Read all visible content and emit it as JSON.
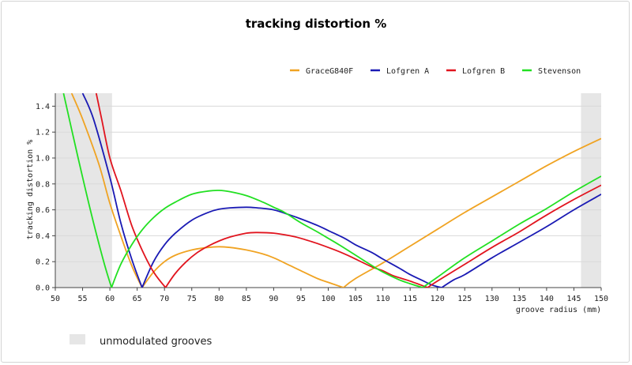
{
  "chart_data": {
    "type": "line",
    "title": "tracking distortion %",
    "xlabel": "groove radius (mm)",
    "ylabel": "tracking distortion %",
    "xlim": [
      50,
      150
    ],
    "ylim": [
      0,
      1.5
    ],
    "x_ticks": [
      50,
      55,
      60,
      65,
      70,
      75,
      80,
      85,
      90,
      95,
      100,
      105,
      110,
      115,
      120,
      125,
      130,
      135,
      140,
      145,
      150
    ],
    "y_ticks": [
      0.0,
      0.2,
      0.4,
      0.6,
      0.8,
      1.0,
      1.2,
      1.4
    ],
    "y_tick_labels": [
      "0.0",
      "0.2",
      "0.4",
      "0.6",
      "0.8",
      "1.0",
      "1.2",
      "1.4"
    ],
    "grid": "horizontal",
    "legend_position": "top-right",
    "shaded_regions": [
      {
        "x": [
          50,
          60.4
        ],
        "label": "unmodulated grooves"
      },
      {
        "x": [
          146.3,
          150
        ],
        "label": "unmodulated grooves"
      }
    ],
    "shaded_legend_label": "unmodulated grooves",
    "series": [
      {
        "name": "GraceG840F",
        "color": "#f0a322",
        "x": [
          53,
          55,
          58,
          60,
          62,
          64,
          65.9,
          68,
          70,
          72,
          75,
          78,
          80,
          82,
          85,
          88,
          90,
          93,
          95,
          98,
          100,
          102.8,
          105,
          110,
          115,
          120,
          125,
          130,
          135,
          140,
          145,
          150
        ],
        "y": [
          1.5,
          1.3,
          0.95,
          0.65,
          0.4,
          0.17,
          0.0,
          0.12,
          0.2,
          0.25,
          0.29,
          0.31,
          0.315,
          0.31,
          0.29,
          0.26,
          0.23,
          0.17,
          0.13,
          0.07,
          0.04,
          0.0,
          0.07,
          0.19,
          0.32,
          0.45,
          0.58,
          0.7,
          0.82,
          0.94,
          1.05,
          1.15
        ]
      },
      {
        "name": "Lofgren A",
        "color": "#1a1ab4",
        "x": [
          55,
          57,
          60,
          62,
          64,
          65.9,
          68,
          70,
          72,
          75,
          78,
          80,
          82,
          85,
          87,
          90,
          93,
          95,
          98,
          100,
          103,
          105,
          108,
          110,
          113,
          115,
          117,
          119,
          120.8,
          123,
          125,
          130,
          135,
          140,
          145,
          150
        ],
        "y": [
          1.5,
          1.3,
          0.85,
          0.5,
          0.22,
          0.0,
          0.2,
          0.33,
          0.42,
          0.52,
          0.58,
          0.605,
          0.615,
          0.62,
          0.615,
          0.6,
          0.56,
          0.53,
          0.48,
          0.44,
          0.38,
          0.33,
          0.27,
          0.22,
          0.15,
          0.1,
          0.06,
          0.02,
          0.0,
          0.06,
          0.1,
          0.23,
          0.35,
          0.47,
          0.6,
          0.72
        ]
      },
      {
        "name": "Lofgren B",
        "color": "#e1141e",
        "x": [
          57.5,
          58.5,
          60,
          62,
          64,
          66,
          68,
          70.2,
          72,
          74,
          76,
          78,
          80,
          82,
          85,
          87,
          90,
          93,
          95,
          98,
          100,
          103,
          105,
          108,
          110,
          112,
          115,
          118.2,
          120,
          125,
          130,
          135,
          140,
          145,
          150
        ],
        "y": [
          1.5,
          1.3,
          1.0,
          0.75,
          0.48,
          0.28,
          0.12,
          0.0,
          0.11,
          0.2,
          0.27,
          0.32,
          0.36,
          0.39,
          0.42,
          0.425,
          0.42,
          0.4,
          0.38,
          0.34,
          0.31,
          0.26,
          0.22,
          0.16,
          0.13,
          0.09,
          0.05,
          0.0,
          0.05,
          0.18,
          0.31,
          0.43,
          0.56,
          0.68,
          0.79
        ]
      },
      {
        "name": "Stevenson",
        "color": "#22e022",
        "x": [
          51.5,
          53,
          55,
          57,
          59,
          60.3,
          62,
          64,
          66,
          68,
          70,
          72,
          75,
          78,
          80,
          82,
          85,
          88,
          90,
          92,
          95,
          98,
          100,
          102,
          105,
          108,
          110,
          113,
          115,
          117.3,
          120,
          125,
          130,
          135,
          140,
          145,
          150
        ],
        "y": [
          1.5,
          1.22,
          0.85,
          0.5,
          0.18,
          0.0,
          0.18,
          0.33,
          0.45,
          0.54,
          0.61,
          0.66,
          0.72,
          0.745,
          0.75,
          0.74,
          0.71,
          0.66,
          0.62,
          0.58,
          0.5,
          0.43,
          0.38,
          0.33,
          0.25,
          0.17,
          0.12,
          0.06,
          0.03,
          0.0,
          0.08,
          0.23,
          0.36,
          0.49,
          0.61,
          0.74,
          0.86
        ]
      }
    ]
  }
}
